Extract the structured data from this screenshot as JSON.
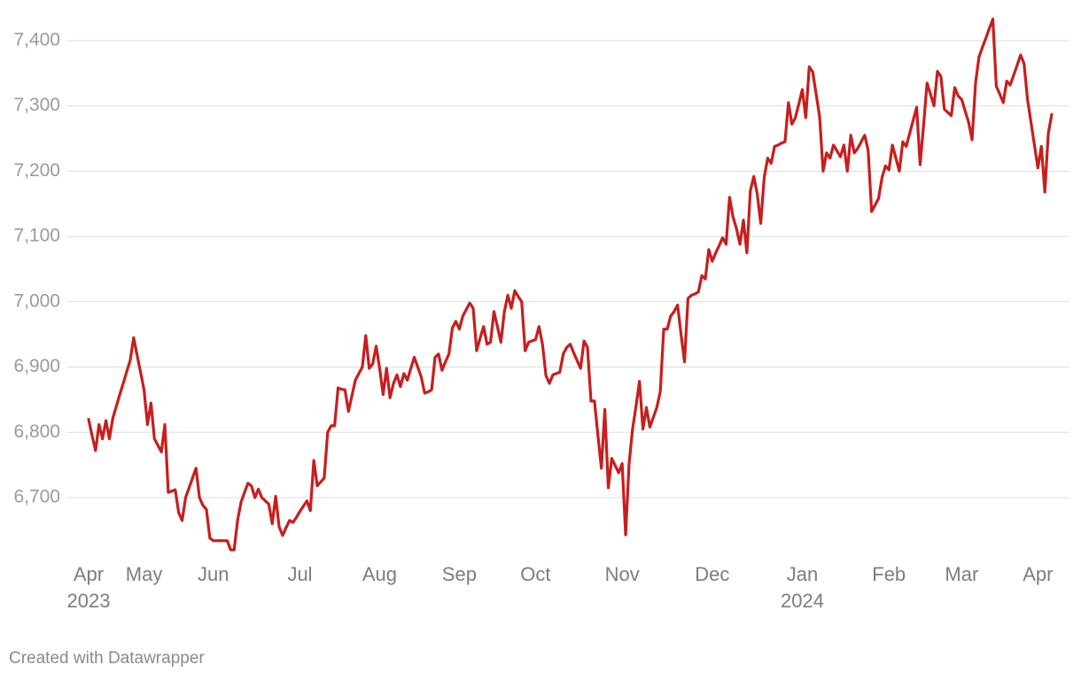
{
  "chart_data": {
    "type": "line",
    "color": "#c71e1d",
    "grid": true,
    "credit": "Created with Datawrapper",
    "ylim": [
      6620,
      7450
    ],
    "yticks": [
      {
        "value": 6700,
        "label": "6,700"
      },
      {
        "value": 6800,
        "label": "6,800"
      },
      {
        "value": 6900,
        "label": "6,900"
      },
      {
        "value": 7000,
        "label": "7,000"
      },
      {
        "value": 7100,
        "label": "7,100"
      },
      {
        "value": 7200,
        "label": "7,200"
      },
      {
        "value": 7300,
        "label": "7,300"
      },
      {
        "value": 7400,
        "label": "7,400"
      }
    ],
    "categories": [
      "Apr\n2023",
      null,
      null,
      null,
      null,
      null,
      null,
      null,
      null,
      null,
      null,
      null,
      null,
      null,
      null,
      null,
      "May",
      null,
      null,
      null,
      null,
      null,
      null,
      null,
      null,
      null,
      null,
      null,
      null,
      null,
      null,
      null,
      null,
      null,
      null,
      null,
      "Jun",
      null,
      null,
      null,
      null,
      null,
      null,
      null,
      null,
      null,
      null,
      null,
      null,
      null,
      null,
      null,
      null,
      null,
      null,
      null,
      null,
      null,
      null,
      null,
      null,
      "Jul",
      null,
      null,
      null,
      null,
      null,
      null,
      null,
      null,
      null,
      null,
      null,
      null,
      null,
      null,
      null,
      null,
      null,
      null,
      null,
      null,
      null,
      null,
      "Aug",
      null,
      null,
      null,
      null,
      null,
      null,
      null,
      null,
      null,
      null,
      null,
      null,
      null,
      null,
      null,
      null,
      null,
      null,
      null,
      null,
      null,
      null,
      "Sep",
      null,
      null,
      null,
      null,
      null,
      null,
      null,
      null,
      null,
      null,
      null,
      null,
      null,
      null,
      null,
      null,
      null,
      null,
      null,
      null,
      null,
      "Oct",
      null,
      null,
      null,
      null,
      null,
      null,
      null,
      null,
      null,
      null,
      null,
      null,
      null,
      null,
      null,
      null,
      null,
      null,
      null,
      null,
      null,
      null,
      null,
      null,
      "Nov",
      null,
      null,
      null,
      null,
      null,
      null,
      null,
      null,
      null,
      null,
      null,
      null,
      null,
      null,
      null,
      null,
      null,
      null,
      null,
      null,
      null,
      null,
      null,
      null,
      null,
      "Dec",
      null,
      null,
      null,
      null,
      null,
      null,
      null,
      null,
      null,
      null,
      null,
      null,
      null,
      null,
      null,
      null,
      null,
      null,
      null,
      null,
      null,
      null,
      null,
      null,
      null,
      "Jan\n2024",
      null,
      null,
      null,
      null,
      null,
      null,
      null,
      null,
      null,
      null,
      null,
      null,
      null,
      null,
      null,
      null,
      null,
      null,
      null,
      null,
      null,
      null,
      null,
      null,
      "Feb",
      null,
      null,
      null,
      null,
      null,
      null,
      null,
      null,
      null,
      null,
      null,
      null,
      null,
      null,
      null,
      null,
      null,
      null,
      null,
      null,
      "Mar",
      null,
      null,
      null,
      null,
      null,
      null,
      null,
      null,
      null,
      null,
      null,
      null,
      null,
      null,
      null,
      null,
      null,
      null,
      null,
      null,
      null,
      "Apr",
      null,
      null,
      null,
      null
    ],
    "values": [
      6820,
      6795,
      6772,
      6812,
      6790,
      6818,
      6790,
      6822,
      6840,
      6858,
      6875,
      6893,
      6910,
      6945,
      6918,
      6892,
      6865,
      6812,
      6845,
      6790,
      6780,
      6770,
      6812,
      6708,
      6710,
      6712,
      6677,
      6665,
      6700,
      6715,
      6730,
      6745,
      6700,
      6688,
      6682,
      6638,
      6634,
      6634,
      6634,
      6634,
      6634,
      6620,
      6620,
      6665,
      6693,
      6708,
      6722,
      6718,
      6700,
      6713,
      6700,
      6695,
      6690,
      6660,
      6702,
      6655,
      6642,
      6654,
      6665,
      6662,
      6670,
      6679,
      6687,
      6695,
      6680,
      6757,
      6718,
      6724,
      6730,
      6800,
      6810,
      6810,
      6868,
      6866,
      6865,
      6832,
      6856,
      6880,
      6890,
      6900,
      6948,
      6898,
      6905,
      6932,
      6898,
      6858,
      6898,
      6853,
      6875,
      6888,
      6870,
      6890,
      6880,
      6898,
      6915,
      6900,
      6885,
      6860,
      6862,
      6865,
      6915,
      6920,
      6895,
      6908,
      6920,
      6960,
      6970,
      6958,
      6978,
      6988,
      6998,
      6990,
      6925,
      6944,
      6962,
      6935,
      6938,
      6985,
      6962,
      6938,
      6985,
      7010,
      6990,
      7017,
      7008,
      7000,
      6925,
      6938,
      6940,
      6942,
      6962,
      6935,
      6887,
      6875,
      6888,
      6890,
      6892,
      6920,
      6930,
      6935,
      6922,
      6910,
      6898,
      6940,
      6930,
      6848,
      6848,
      6796,
      6745,
      6835,
      6715,
      6760,
      6749,
      6738,
      6752,
      6643,
      6752,
      6805,
      6840,
      6878,
      6805,
      6838,
      6808,
      6823,
      6838,
      6862,
      6958,
      6958,
      6978,
      6985,
      6995,
      6950,
      6908,
      7005,
      7010,
      7012,
      7015,
      7040,
      7035,
      7080,
      7062,
      7075,
      7086,
      7098,
      7088,
      7160,
      7130,
      7112,
      7088,
      7125,
      7075,
      7170,
      7192,
      7165,
      7120,
      7190,
      7220,
      7212,
      7238,
      7240,
      7243,
      7245,
      7305,
      7272,
      7282,
      7303,
      7325,
      7282,
      7360,
      7352,
      7318,
      7283,
      7200,
      7228,
      7220,
      7240,
      7231,
      7222,
      7240,
      7200,
      7255,
      7228,
      7235,
      7245,
      7255,
      7232,
      7138,
      7148,
      7158,
      7190,
      7208,
      7202,
      7240,
      7220,
      7200,
      7245,
      7238,
      7258,
      7278,
      7298,
      7210,
      7270,
      7335,
      7318,
      7300,
      7353,
      7345,
      7295,
      7290,
      7285,
      7328,
      7315,
      7310,
      7292,
      7275,
      7248,
      7335,
      7375,
      7390,
      7404,
      7419,
      7433,
      7330,
      7318,
      7305,
      7338,
      7332,
      7347,
      7362,
      7378,
      7365,
      7310,
      7275,
      7240,
      7205,
      7238,
      7168,
      7258,
      7287
    ]
  }
}
